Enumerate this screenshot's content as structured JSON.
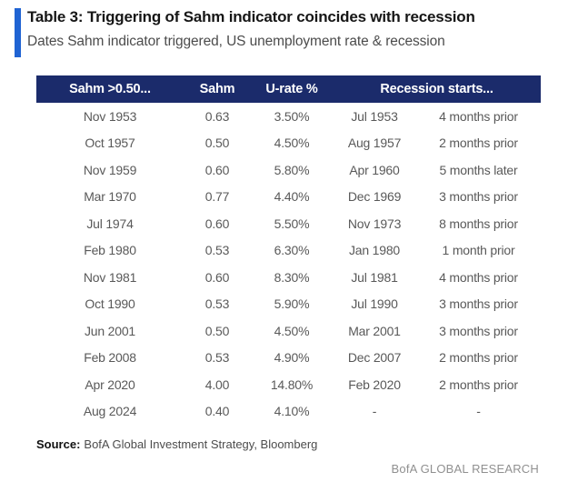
{
  "title": "Table 3: Triggering of Sahm indicator coincides with recession",
  "subtitle": "Dates Sahm indicator triggered, US unemployment rate & recession",
  "colors": {
    "header_bg": "#1b2b6b",
    "accent_bar": "#1f63d3",
    "body_text": "#595959",
    "brand_text": "#909090"
  },
  "footer": {
    "source_label": "Source:",
    "source_text": "BofA Global Investment Strategy, Bloomberg",
    "brand": "BofA GLOBAL RESEARCH"
  },
  "chart_data": {
    "type": "table",
    "title": "Table 3: Triggering of Sahm indicator coincides with recession",
    "subtitle": "Dates Sahm indicator triggered, US unemployment rate & recession",
    "columns": [
      "Sahm >0.50...",
      "Sahm",
      "U-rate %",
      "Recession starts..."
    ],
    "column_note": "Recession starts... header spans two sub-columns: recession start date and timing relative to Sahm trigger",
    "rows": [
      [
        "Nov 1953",
        "0.63",
        "3.50%",
        "Jul 1953",
        "4 months prior"
      ],
      [
        "Oct 1957",
        "0.50",
        "4.50%",
        "Aug 1957",
        "2 months prior"
      ],
      [
        "Nov 1959",
        "0.60",
        "5.80%",
        "Apr 1960",
        "5 months later"
      ],
      [
        "Mar 1970",
        "0.77",
        "4.40%",
        "Dec 1969",
        "3 months prior"
      ],
      [
        "Jul 1974",
        "0.60",
        "5.50%",
        "Nov 1973",
        "8 months prior"
      ],
      [
        "Feb 1980",
        "0.53",
        "6.30%",
        "Jan 1980",
        "1 month prior"
      ],
      [
        "Nov 1981",
        "0.60",
        "8.30%",
        "Jul 1981",
        "4 months prior"
      ],
      [
        "Oct 1990",
        "0.53",
        "5.90%",
        "Jul 1990",
        "3 months prior"
      ],
      [
        "Jun 2001",
        "0.50",
        "4.50%",
        "Mar 2001",
        "3 months prior"
      ],
      [
        "Feb 2008",
        "0.53",
        "4.90%",
        "Dec 2007",
        "2 months prior"
      ],
      [
        "Apr 2020",
        "4.00",
        "14.80%",
        "Feb 2020",
        "2 months prior"
      ],
      [
        "Aug 2024",
        "0.40",
        "4.10%",
        "-",
        "-"
      ]
    ]
  }
}
